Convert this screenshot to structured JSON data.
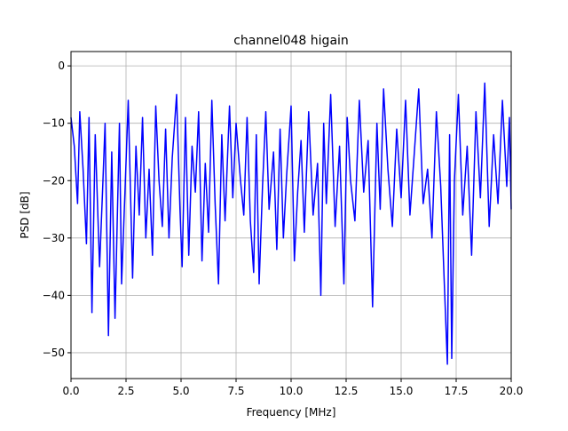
{
  "chart_data": {
    "type": "line",
    "title": "channel048 higain",
    "xlabel": "Frequency [MHz]",
    "ylabel": "PSD [dB]",
    "xlim": [
      0,
      20
    ],
    "ylim": [
      -54.5,
      2.5
    ],
    "xticks": [
      0,
      2.5,
      5,
      7.5,
      10,
      12.5,
      15,
      17.5,
      20
    ],
    "xtick_labels": [
      "0.0",
      "2.5",
      "5.0",
      "7.5",
      "10.0",
      "12.5",
      "15.0",
      "17.5",
      "20.0"
    ],
    "yticks": [
      0,
      -10,
      -20,
      -30,
      -40,
      -50
    ],
    "ytick_labels": [
      "0",
      "−10",
      "−20",
      "−30",
      "−40",
      "−50"
    ],
    "grid": true,
    "legend": null,
    "series": [
      {
        "color": "#0000ff",
        "x": [
          0,
          0.15,
          0.3,
          0.4,
          0.55,
          0.7,
          0.82,
          0.95,
          1.1,
          1.3,
          1.45,
          1.55,
          1.7,
          1.85,
          2.0,
          2.2,
          2.3,
          2.45,
          2.6,
          2.8,
          2.95,
          3.1,
          3.25,
          3.4,
          3.55,
          3.7,
          3.85,
          4.0,
          4.15,
          4.3,
          4.45,
          4.6,
          4.8,
          4.95,
          5.05,
          5.2,
          5.35,
          5.5,
          5.65,
          5.8,
          5.95,
          6.1,
          6.25,
          6.4,
          6.55,
          6.7,
          6.85,
          7.0,
          7.2,
          7.35,
          7.5,
          7.7,
          7.85,
          8.0,
          8.15,
          8.3,
          8.42,
          8.55,
          8.7,
          8.85,
          9.0,
          9.2,
          9.35,
          9.5,
          9.65,
          9.8,
          10.0,
          10.15,
          10.3,
          10.45,
          10.6,
          10.8,
          11.0,
          11.2,
          11.35,
          11.48,
          11.6,
          11.8,
          12.0,
          12.2,
          12.4,
          12.55,
          12.7,
          12.9,
          13.1,
          13.3,
          13.5,
          13.7,
          13.9,
          14.05,
          14.2,
          14.4,
          14.6,
          14.8,
          15.0,
          15.2,
          15.4,
          15.6,
          15.8,
          16.0,
          16.2,
          16.4,
          16.6,
          16.8,
          16.95,
          17.1,
          17.2,
          17.3,
          17.42,
          17.6,
          17.8,
          18.0,
          18.2,
          18.4,
          18.6,
          18.8,
          19.0,
          19.2,
          19.4,
          19.6,
          19.8,
          19.92,
          20.0
        ],
        "y": [
          -9,
          -14,
          -24,
          -8,
          -18,
          -31,
          -9,
          -43,
          -12,
          -35,
          -20,
          -10,
          -47,
          -15,
          -44,
          -10,
          -38,
          -22,
          -6,
          -37,
          -14,
          -26,
          -9,
          -30,
          -18,
          -33,
          -7,
          -20,
          -28,
          -11,
          -30,
          -16,
          -5,
          -25,
          -35,
          -9,
          -33,
          -14,
          -22,
          -8,
          -34,
          -17,
          -29,
          -6,
          -24,
          -38,
          -12,
          -27,
          -7,
          -23,
          -10,
          -20,
          -26,
          -9,
          -27,
          -36,
          -12,
          -38,
          -21,
          -8,
          -25,
          -15,
          -32,
          -11,
          -30,
          -19,
          -7,
          -34,
          -22,
          -13,
          -29,
          -8,
          -26,
          -17,
          -40,
          -10,
          -24,
          -5,
          -28,
          -14,
          -38,
          -9,
          -20,
          -27,
          -6,
          -22,
          -13,
          -42,
          -10,
          -25,
          -4,
          -18,
          -28,
          -11,
          -23,
          -6,
          -26,
          -15,
          -4,
          -24,
          -18,
          -30,
          -8,
          -21,
          -37,
          -52,
          -12,
          -51,
          -20,
          -5,
          -26,
          -14,
          -33,
          -8,
          -23,
          -3,
          -28,
          -12,
          -24,
          -6,
          -21,
          -9,
          -25
        ]
      }
    ]
  }
}
